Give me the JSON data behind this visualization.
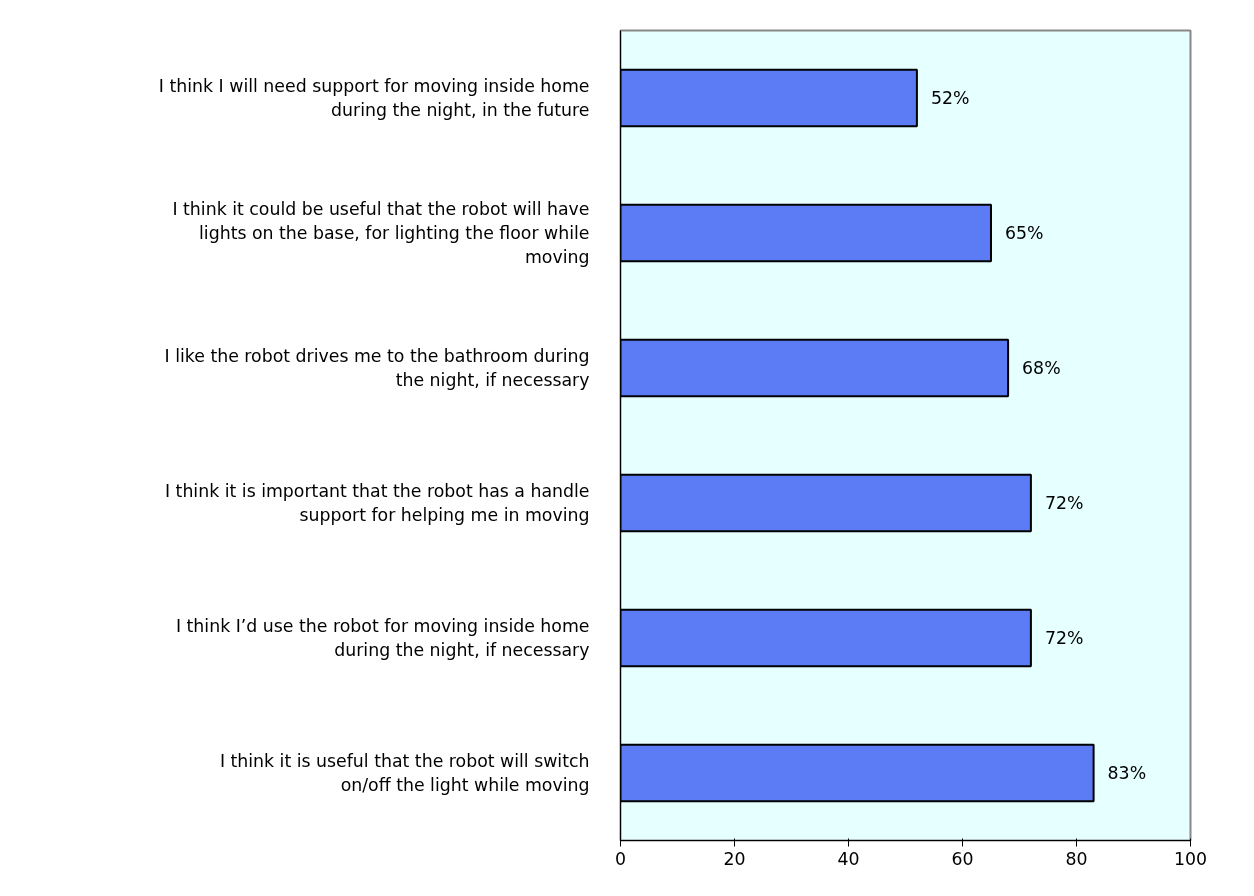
{
  "chart_data": {
    "type": "bar",
    "orientation": "horizontal",
    "categories": [
      "I think I will need support for moving inside home during the night, in the future",
      "I think it could be useful that the robot will have lights on the base, for lighting the floor while moving",
      "I like the robot drives me to the bathroom during the night, if necessary",
      "I think it is important that the robot has a handle support for helping me in moving",
      "I think I’d use the robot for moving inside home during the night, if necessary",
      "I think it is useful that the robot will switch on/off the light while moving"
    ],
    "values": [
      52,
      65,
      68,
      72,
      72,
      83
    ],
    "value_labels": [
      "52%",
      "65%",
      "68%",
      "72%",
      "72%",
      "83%"
    ],
    "color": "#5b7cf5",
    "xlim": [
      0,
      100
    ],
    "xticks": [
      0,
      20,
      40,
      60,
      80,
      100
    ],
    "grid": false
  }
}
